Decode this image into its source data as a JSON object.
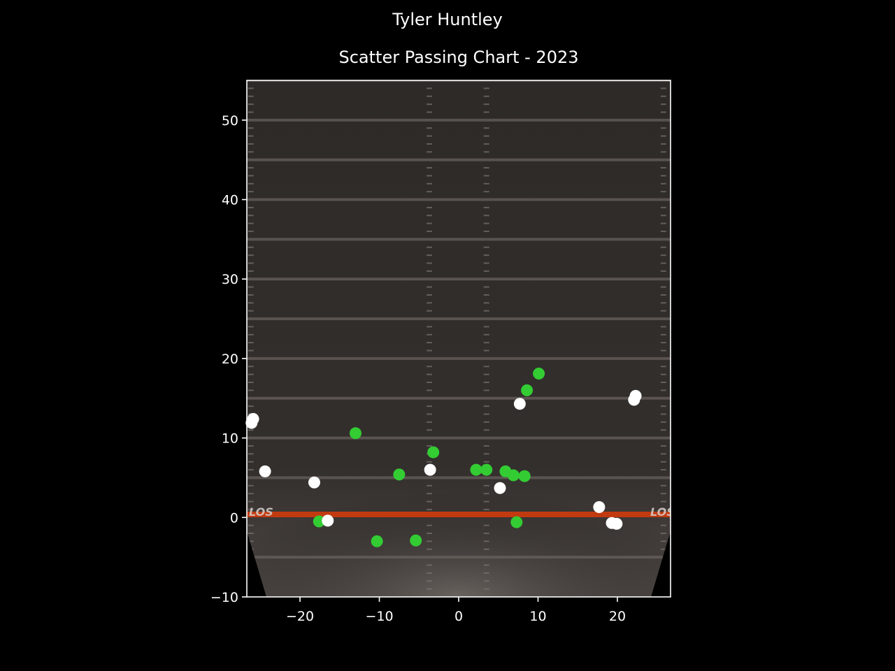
{
  "figure": {
    "suptitle": "Tyler Huntley",
    "title": "Scatter Passing Chart - 2023"
  },
  "field": {
    "los_text": "LOS"
  },
  "colors": {
    "background": "#000000",
    "complete": "#33cc33",
    "incomplete": "#ffffff",
    "los_line": "#c23a10",
    "field_dark": "#2e2a28",
    "field_light": "#5a5450"
  },
  "chart_data": {
    "type": "scatter",
    "title": "Scatter Passing Chart - 2023",
    "xlim": [
      -26.7,
      26.7
    ],
    "ylim": [
      -10,
      55
    ],
    "x_ticks": [
      -20,
      -10,
      0,
      10,
      20
    ],
    "x_tick_labels": [
      "−20",
      "−10",
      "0",
      "10",
      "20"
    ],
    "y_ticks": [
      -10,
      0,
      10,
      20,
      30,
      40,
      50
    ],
    "y_tick_labels": [
      "−10",
      "0",
      "10",
      "20",
      "30",
      "40",
      "50"
    ],
    "grid": false,
    "series": [
      {
        "color": "#33cc33",
        "points": [
          [
            -13.0,
            10.6
          ],
          [
            -7.5,
            5.4
          ],
          [
            -3.2,
            8.2
          ],
          [
            2.2,
            6.0
          ],
          [
            3.5,
            6.0
          ],
          [
            5.9,
            5.8
          ],
          [
            6.9,
            5.3
          ],
          [
            8.3,
            5.2
          ],
          [
            8.6,
            16.0
          ],
          [
            10.1,
            18.1
          ],
          [
            -17.6,
            -0.5
          ],
          [
            -10.3,
            -3.0
          ],
          [
            -5.4,
            -2.9
          ],
          [
            7.3,
            -0.6
          ]
        ]
      },
      {
        "color": "#ffffff",
        "points": [
          [
            -26.1,
            11.9
          ],
          [
            -25.9,
            12.4
          ],
          [
            -24.4,
            5.8
          ],
          [
            -18.2,
            4.4
          ],
          [
            -16.5,
            -0.4
          ],
          [
            -3.6,
            6.0
          ],
          [
            5.2,
            3.7
          ],
          [
            7.7,
            14.3
          ],
          [
            17.7,
            1.3
          ],
          [
            19.3,
            -0.7
          ],
          [
            19.9,
            -0.8
          ],
          [
            22.1,
            14.8
          ],
          [
            22.3,
            15.3
          ]
        ]
      }
    ]
  }
}
